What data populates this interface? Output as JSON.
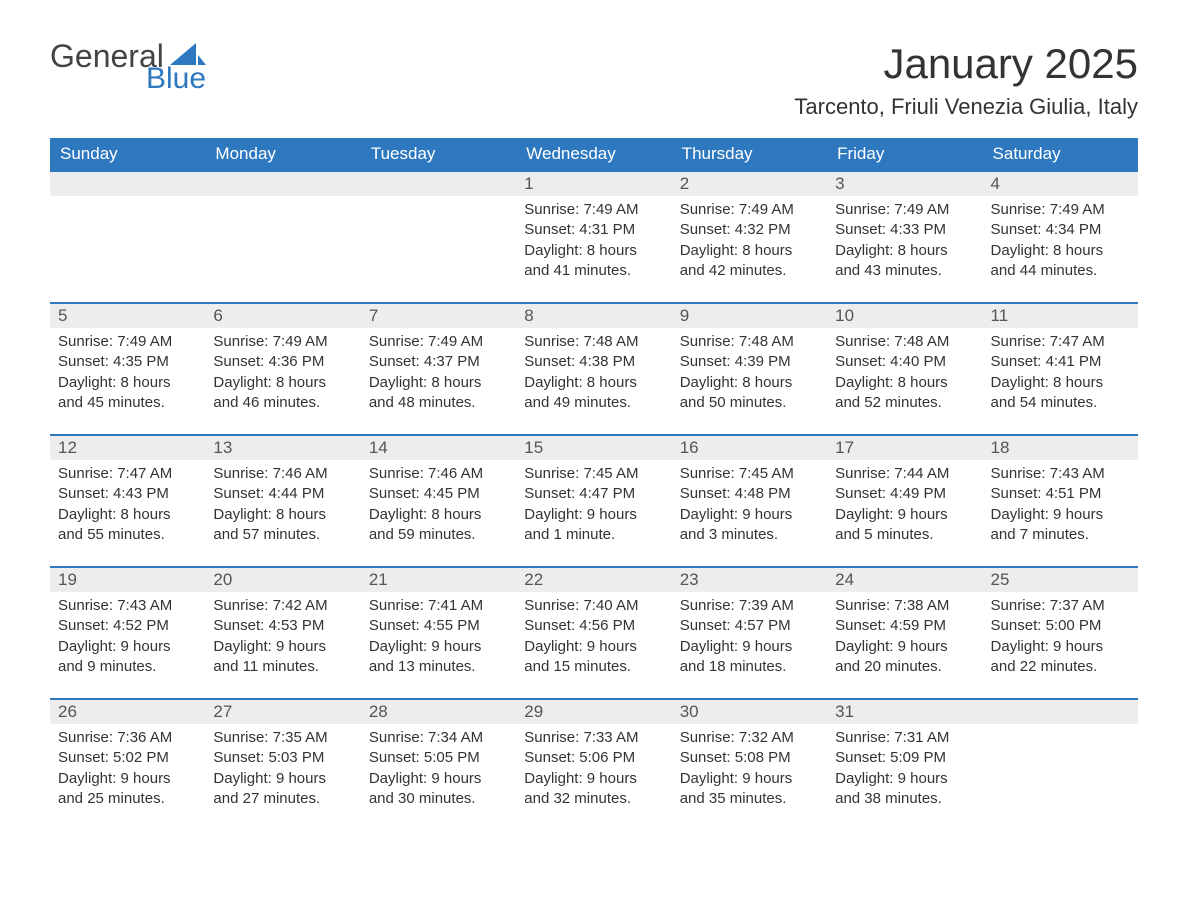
{
  "logo": {
    "text_general": "General",
    "text_blue": "Blue",
    "sail_color": "#2e78c0",
    "general_color": "#444444"
  },
  "header": {
    "month_title": "January 2025",
    "location": "Tarcento, Friuli Venezia Giulia, Italy"
  },
  "colors": {
    "header_bg": "#2e78c0",
    "header_text": "#ffffff",
    "row_border": "#2e78c0",
    "daynum_bg": "#ededed",
    "daynum_text": "#555555",
    "body_text": "#333333",
    "page_bg": "#ffffff"
  },
  "layout": {
    "columns": 7,
    "rows": 5,
    "leading_blanks": 3,
    "trailing_blanks": 1
  },
  "weekdays": [
    "Sunday",
    "Monday",
    "Tuesday",
    "Wednesday",
    "Thursday",
    "Friday",
    "Saturday"
  ],
  "days": [
    {
      "n": "1",
      "sunrise": "Sunrise: 7:49 AM",
      "sunset": "Sunset: 4:31 PM",
      "dl1": "Daylight: 8 hours",
      "dl2": "and 41 minutes."
    },
    {
      "n": "2",
      "sunrise": "Sunrise: 7:49 AM",
      "sunset": "Sunset: 4:32 PM",
      "dl1": "Daylight: 8 hours",
      "dl2": "and 42 minutes."
    },
    {
      "n": "3",
      "sunrise": "Sunrise: 7:49 AM",
      "sunset": "Sunset: 4:33 PM",
      "dl1": "Daylight: 8 hours",
      "dl2": "and 43 minutes."
    },
    {
      "n": "4",
      "sunrise": "Sunrise: 7:49 AM",
      "sunset": "Sunset: 4:34 PM",
      "dl1": "Daylight: 8 hours",
      "dl2": "and 44 minutes."
    },
    {
      "n": "5",
      "sunrise": "Sunrise: 7:49 AM",
      "sunset": "Sunset: 4:35 PM",
      "dl1": "Daylight: 8 hours",
      "dl2": "and 45 minutes."
    },
    {
      "n": "6",
      "sunrise": "Sunrise: 7:49 AM",
      "sunset": "Sunset: 4:36 PM",
      "dl1": "Daylight: 8 hours",
      "dl2": "and 46 minutes."
    },
    {
      "n": "7",
      "sunrise": "Sunrise: 7:49 AM",
      "sunset": "Sunset: 4:37 PM",
      "dl1": "Daylight: 8 hours",
      "dl2": "and 48 minutes."
    },
    {
      "n": "8",
      "sunrise": "Sunrise: 7:48 AM",
      "sunset": "Sunset: 4:38 PM",
      "dl1": "Daylight: 8 hours",
      "dl2": "and 49 minutes."
    },
    {
      "n": "9",
      "sunrise": "Sunrise: 7:48 AM",
      "sunset": "Sunset: 4:39 PM",
      "dl1": "Daylight: 8 hours",
      "dl2": "and 50 minutes."
    },
    {
      "n": "10",
      "sunrise": "Sunrise: 7:48 AM",
      "sunset": "Sunset: 4:40 PM",
      "dl1": "Daylight: 8 hours",
      "dl2": "and 52 minutes."
    },
    {
      "n": "11",
      "sunrise": "Sunrise: 7:47 AM",
      "sunset": "Sunset: 4:41 PM",
      "dl1": "Daylight: 8 hours",
      "dl2": "and 54 minutes."
    },
    {
      "n": "12",
      "sunrise": "Sunrise: 7:47 AM",
      "sunset": "Sunset: 4:43 PM",
      "dl1": "Daylight: 8 hours",
      "dl2": "and 55 minutes."
    },
    {
      "n": "13",
      "sunrise": "Sunrise: 7:46 AM",
      "sunset": "Sunset: 4:44 PM",
      "dl1": "Daylight: 8 hours",
      "dl2": "and 57 minutes."
    },
    {
      "n": "14",
      "sunrise": "Sunrise: 7:46 AM",
      "sunset": "Sunset: 4:45 PM",
      "dl1": "Daylight: 8 hours",
      "dl2": "and 59 minutes."
    },
    {
      "n": "15",
      "sunrise": "Sunrise: 7:45 AM",
      "sunset": "Sunset: 4:47 PM",
      "dl1": "Daylight: 9 hours",
      "dl2": "and 1 minute."
    },
    {
      "n": "16",
      "sunrise": "Sunrise: 7:45 AM",
      "sunset": "Sunset: 4:48 PM",
      "dl1": "Daylight: 9 hours",
      "dl2": "and 3 minutes."
    },
    {
      "n": "17",
      "sunrise": "Sunrise: 7:44 AM",
      "sunset": "Sunset: 4:49 PM",
      "dl1": "Daylight: 9 hours",
      "dl2": "and 5 minutes."
    },
    {
      "n": "18",
      "sunrise": "Sunrise: 7:43 AM",
      "sunset": "Sunset: 4:51 PM",
      "dl1": "Daylight: 9 hours",
      "dl2": "and 7 minutes."
    },
    {
      "n": "19",
      "sunrise": "Sunrise: 7:43 AM",
      "sunset": "Sunset: 4:52 PM",
      "dl1": "Daylight: 9 hours",
      "dl2": "and 9 minutes."
    },
    {
      "n": "20",
      "sunrise": "Sunrise: 7:42 AM",
      "sunset": "Sunset: 4:53 PM",
      "dl1": "Daylight: 9 hours",
      "dl2": "and 11 minutes."
    },
    {
      "n": "21",
      "sunrise": "Sunrise: 7:41 AM",
      "sunset": "Sunset: 4:55 PM",
      "dl1": "Daylight: 9 hours",
      "dl2": "and 13 minutes."
    },
    {
      "n": "22",
      "sunrise": "Sunrise: 7:40 AM",
      "sunset": "Sunset: 4:56 PM",
      "dl1": "Daylight: 9 hours",
      "dl2": "and 15 minutes."
    },
    {
      "n": "23",
      "sunrise": "Sunrise: 7:39 AM",
      "sunset": "Sunset: 4:57 PM",
      "dl1": "Daylight: 9 hours",
      "dl2": "and 18 minutes."
    },
    {
      "n": "24",
      "sunrise": "Sunrise: 7:38 AM",
      "sunset": "Sunset: 4:59 PM",
      "dl1": "Daylight: 9 hours",
      "dl2": "and 20 minutes."
    },
    {
      "n": "25",
      "sunrise": "Sunrise: 7:37 AM",
      "sunset": "Sunset: 5:00 PM",
      "dl1": "Daylight: 9 hours",
      "dl2": "and 22 minutes."
    },
    {
      "n": "26",
      "sunrise": "Sunrise: 7:36 AM",
      "sunset": "Sunset: 5:02 PM",
      "dl1": "Daylight: 9 hours",
      "dl2": "and 25 minutes."
    },
    {
      "n": "27",
      "sunrise": "Sunrise: 7:35 AM",
      "sunset": "Sunset: 5:03 PM",
      "dl1": "Daylight: 9 hours",
      "dl2": "and 27 minutes."
    },
    {
      "n": "28",
      "sunrise": "Sunrise: 7:34 AM",
      "sunset": "Sunset: 5:05 PM",
      "dl1": "Daylight: 9 hours",
      "dl2": "and 30 minutes."
    },
    {
      "n": "29",
      "sunrise": "Sunrise: 7:33 AM",
      "sunset": "Sunset: 5:06 PM",
      "dl1": "Daylight: 9 hours",
      "dl2": "and 32 minutes."
    },
    {
      "n": "30",
      "sunrise": "Sunrise: 7:32 AM",
      "sunset": "Sunset: 5:08 PM",
      "dl1": "Daylight: 9 hours",
      "dl2": "and 35 minutes."
    },
    {
      "n": "31",
      "sunrise": "Sunrise: 7:31 AM",
      "sunset": "Sunset: 5:09 PM",
      "dl1": "Daylight: 9 hours",
      "dl2": "and 38 minutes."
    }
  ]
}
